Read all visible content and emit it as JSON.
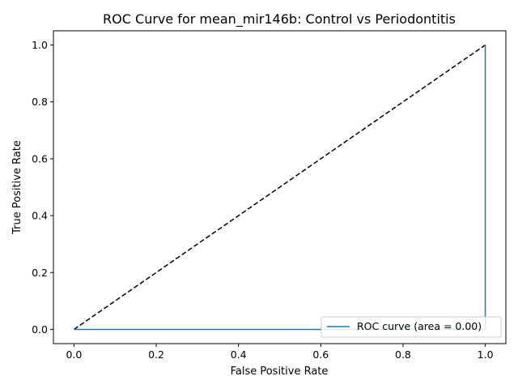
{
  "chart_data": {
    "type": "line",
    "title": "ROC Curve for mean_mir146b: Control vs Periodontitis",
    "xlabel": "False Positive Rate",
    "ylabel": "True Positive Rate",
    "xlim": [
      -0.05,
      1.05
    ],
    "ylim": [
      -0.05,
      1.05
    ],
    "x_ticks": [
      0.0,
      0.2,
      0.4,
      0.6,
      0.8,
      1.0
    ],
    "x_tick_labels": [
      "0.0",
      "0.2",
      "0.4",
      "0.6",
      "0.8",
      "1.0"
    ],
    "y_ticks": [
      0.0,
      0.2,
      0.4,
      0.6,
      0.8,
      1.0
    ],
    "y_tick_labels": [
      "0.0",
      "0.2",
      "0.4",
      "0.6",
      "0.8",
      "1.0"
    ],
    "grid": false,
    "legend_position": "lower-right",
    "series": [
      {
        "name": "ROC curve (area = 0.00)",
        "color": "#1f77b4",
        "style": "solid",
        "x": [
          0.0,
          1.0,
          1.0
        ],
        "y": [
          0.0,
          0.0,
          1.0
        ]
      },
      {
        "name": "",
        "color": "#000000",
        "style": "dashed",
        "x": [
          0.0,
          1.0
        ],
        "y": [
          0.0,
          1.0
        ]
      }
    ]
  }
}
